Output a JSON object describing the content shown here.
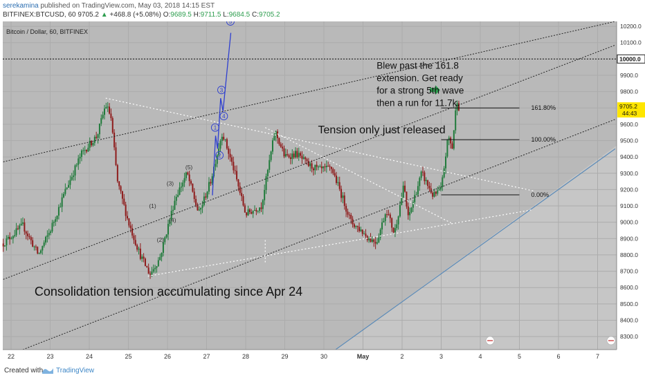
{
  "header": {
    "author": "serekamina",
    "published": "published on TradingView.com, May 03, 2018 14:15 EST",
    "symbol": "BITFINEX:BTCUSD, 60",
    "last": "9705.2",
    "arrow": "▲",
    "change": "+468.8 (+5.08%)",
    "o_label": "O:",
    "o_val": "9689.5",
    "h_label": "H:",
    "h_val": "9711.5",
    "l_label": "L:",
    "l_val": "9684.5",
    "c_label": "C:",
    "c_val": "9705.2"
  },
  "footer": {
    "created": "Created with",
    "brand": "TradingView",
    "logo_icon": "tradingview-logo-icon"
  },
  "colors": {
    "plot_bg": "#b9b9b9",
    "lower_region": "#c6c6c6",
    "up_candle": "#1f7a3a",
    "down_candle": "#8e1b1b",
    "impulse_line": "#2e3fd0",
    "accent_green": "#2e9e4f"
  },
  "chart_data": {
    "type": "candlestick",
    "title": "Bitcoin / Dollar, 60, BITFINEX",
    "y_ticks": [
      8300,
      8400,
      8500,
      8600,
      8700,
      8800,
      8900,
      9000,
      9100,
      9200,
      9300,
      9400,
      9500,
      9600,
      9700,
      9800,
      9900,
      10000,
      10100,
      10200
    ],
    "x_ticks": [
      "22",
      "23",
      "24",
      "25",
      "26",
      "27",
      "28",
      "29",
      "30",
      "May",
      "2",
      "3",
      "4",
      "5",
      "6",
      "7"
    ],
    "ylim": [
      8220,
      10230
    ],
    "last_price": "9705.2",
    "countdown": "44:43",
    "level_10000": "10000.0",
    "fib_levels": [
      {
        "label": "161.80%",
        "value": 9700
      },
      {
        "label": "100.00%",
        "value": 9506
      },
      {
        "label": "0.00%",
        "value": 9168
      }
    ],
    "annotations": {
      "blew_past": [
        "Blew past the 161.8",
        "extension. Get ready",
        "for a strong 5th wave",
        "then a run for 11.7k."
      ],
      "tension": "Tension only just released",
      "consolidation": "Consolidation tension accumulating since Apr 24"
    },
    "wave_labels_minor": [
      {
        "label": "(1)",
        "x": 3.62,
        "y": 9088
      },
      {
        "label": "(2)",
        "x": 3.82,
        "y": 8880
      },
      {
        "label": "(3)",
        "x": 4.07,
        "y": 9225
      },
      {
        "label": "(4)",
        "x": 4.13,
        "y": 9000
      },
      {
        "label": "(5)",
        "x": 4.55,
        "y": 9325
      }
    ],
    "impulse_points": [
      {
        "label": "1",
        "x": 5.15,
        "y": 9165
      },
      {
        "label": "",
        "x": 5.23,
        "y": 9530
      },
      {
        "label": "",
        "x": 5.28,
        "y": 9450
      },
      {
        "label": "",
        "x": 5.36,
        "y": 9760
      },
      {
        "label": "",
        "x": 5.42,
        "y": 9680
      },
      {
        "label": "",
        "x": 5.62,
        "y": 10160
      }
    ],
    "impulse_labels": [
      {
        "label": "1",
        "x": 5.22,
        "y": 9580
      },
      {
        "label": "2",
        "x": 5.33,
        "y": 9410
      },
      {
        "label": "3",
        "x": 5.38,
        "y": 9810
      },
      {
        "label": "4",
        "x": 5.44,
        "y": 9650
      },
      {
        "label": "5",
        "x": 5.61,
        "y": 10230
      }
    ],
    "price_path": [
      {
        "x": -0.2,
        "y": 8870
      },
      {
        "x": 0.3,
        "y": 8980
      },
      {
        "x": 0.7,
        "y": 8800
      },
      {
        "x": 1.0,
        "y": 8950
      },
      {
        "x": 1.4,
        "y": 9200
      },
      {
        "x": 1.8,
        "y": 9420
      },
      {
        "x": 2.2,
        "y": 9530
      },
      {
        "x": 2.42,
        "y": 9720
      },
      {
        "x": 2.55,
        "y": 9650
      },
      {
        "x": 2.72,
        "y": 9250
      },
      {
        "x": 3.0,
        "y": 9000
      },
      {
        "x": 3.3,
        "y": 8800
      },
      {
        "x": 3.55,
        "y": 8680
      },
      {
        "x": 3.8,
        "y": 8780
      },
      {
        "x": 4.2,
        "y": 9150
      },
      {
        "x": 4.5,
        "y": 9300
      },
      {
        "x": 4.8,
        "y": 9050
      },
      {
        "x": 5.1,
        "y": 9250
      },
      {
        "x": 5.4,
        "y": 9550
      },
      {
        "x": 5.7,
        "y": 9320
      },
      {
        "x": 6.0,
        "y": 9050
      },
      {
        "x": 6.4,
        "y": 9100
      },
      {
        "x": 6.75,
        "y": 9560
      },
      {
        "x": 7.0,
        "y": 9400
      },
      {
        "x": 7.3,
        "y": 9420
      },
      {
        "x": 7.6,
        "y": 9350
      },
      {
        "x": 7.9,
        "y": 9320
      },
      {
        "x": 8.2,
        "y": 9330
      },
      {
        "x": 8.4,
        "y": 9200
      },
      {
        "x": 8.7,
        "y": 9000
      },
      {
        "x": 8.95,
        "y": 8950
      },
      {
        "x": 9.15,
        "y": 8900
      },
      {
        "x": 9.35,
        "y": 8880
      },
      {
        "x": 9.6,
        "y": 9080
      },
      {
        "x": 9.8,
        "y": 8930
      },
      {
        "x": 10.05,
        "y": 9230
      },
      {
        "x": 10.15,
        "y": 9020
      },
      {
        "x": 10.5,
        "y": 9300
      },
      {
        "x": 10.8,
        "y": 9160
      },
      {
        "x": 11.0,
        "y": 9200
      },
      {
        "x": 11.18,
        "y": 9530
      },
      {
        "x": 11.28,
        "y": 9450
      },
      {
        "x": 11.4,
        "y": 9760
      },
      {
        "x": 11.45,
        "y": 9705
      }
    ]
  }
}
